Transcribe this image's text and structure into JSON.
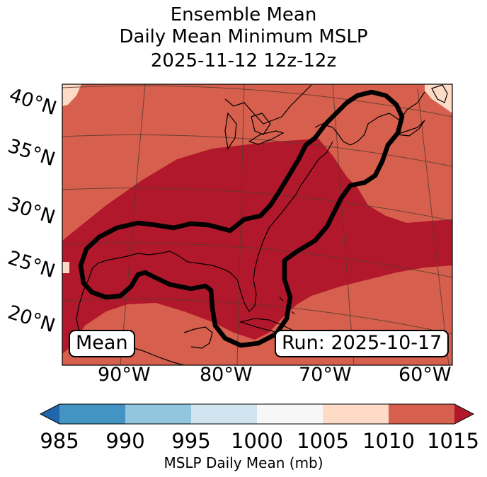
{
  "title": {
    "line1": "Ensemble Mean",
    "line2": "Daily Mean Minimum MSLP",
    "line3": "2025-11-12 12z-12z"
  },
  "map": {
    "lat_labels": [
      "40°N",
      "35°N",
      "30°N",
      "25°N",
      "20°N"
    ],
    "lon_labels": [
      "90°W",
      "80°W",
      "70°W",
      "60°W"
    ],
    "mean_label": "Mean",
    "run_label": "Run: 2025-10-17",
    "colors": {
      "high_1010_1015": "#d6604d",
      "above_1015": "#b2182b",
      "band_1005_1010": "#fddbc7",
      "contour": "#000000",
      "coast": "#000000",
      "grid": "#5a3a30"
    }
  },
  "colorbar": {
    "ticks": [
      "985",
      "990",
      "995",
      "1000",
      "1005",
      "1010",
      "1015"
    ],
    "label": "MSLP Daily Mean (mb)",
    "colors": [
      "#2166ac",
      "#4393c3",
      "#92c5de",
      "#d1e5f0",
      "#f7f7f7",
      "#fddbc7",
      "#d6604d",
      "#b2182b"
    ]
  }
}
